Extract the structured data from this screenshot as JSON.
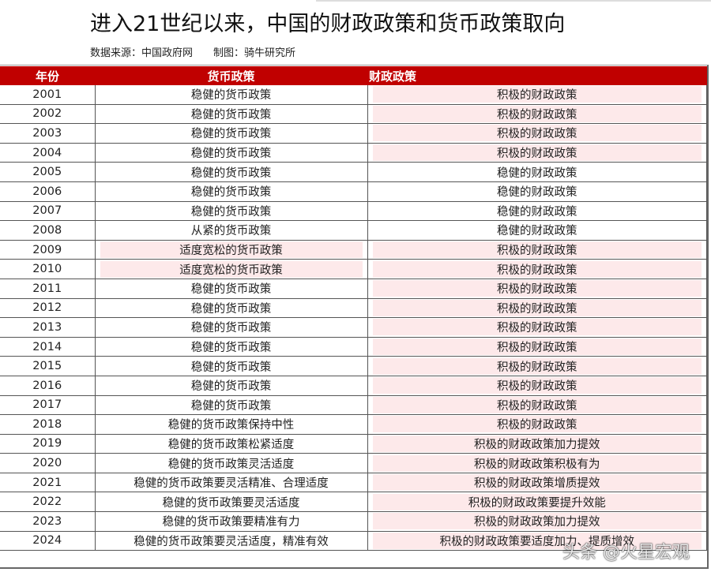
{
  "title": "进入21世纪以来，中国的财政政策和货币政策取向",
  "subtitle": "数据来源：中国政府网　　制图：骑牛研究所",
  "colors": {
    "header": "#c00000",
    "highlight": "#fde9ea"
  },
  "headers": [
    "年份",
    "货币政策",
    "财政政策"
  ],
  "rows": [
    [
      "2001",
      "稳健的货币政策",
      "积极的财政政策",
      false,
      true
    ],
    [
      "2002",
      "稳健的货币政策",
      "积极的财政政策",
      false,
      true
    ],
    [
      "2003",
      "稳健的货币政策",
      "积极的财政政策",
      false,
      true
    ],
    [
      "2004",
      "稳健的货币政策",
      "积极的财政政策",
      false,
      true
    ],
    [
      "2005",
      "稳健的货币政策",
      "稳健的财政政策",
      false,
      false
    ],
    [
      "2006",
      "稳健的货币政策",
      "稳健的财政政策",
      false,
      false
    ],
    [
      "2007",
      "稳健的货币政策",
      "稳健的财政政策",
      false,
      false
    ],
    [
      "2008",
      "从紧的货币政策",
      "稳健的财政政策",
      false,
      false
    ],
    [
      "2009",
      "适度宽松的货币政策",
      "积极的财政政策",
      true,
      true
    ],
    [
      "2010",
      "适度宽松的货币政策",
      "积极的财政政策",
      true,
      true
    ],
    [
      "2011",
      "稳健的货币政策",
      "积极的财政政策",
      false,
      true
    ],
    [
      "2012",
      "稳健的货币政策",
      "积极的财政政策",
      false,
      true
    ],
    [
      "2013",
      "稳健的货币政策",
      "积极的财政政策",
      false,
      true
    ],
    [
      "2014",
      "稳健的货币政策",
      "积极的财政政策",
      false,
      true
    ],
    [
      "2015",
      "稳健的货币政策",
      "积极的财政政策",
      false,
      true
    ],
    [
      "2016",
      "稳健的货币政策",
      "积极的财政政策",
      false,
      true
    ],
    [
      "2017",
      "稳健的货币政策",
      "积极的财政政策",
      false,
      true
    ],
    [
      "2018",
      "稳健的货币政策保持中性",
      "积极的财政政策",
      false,
      true
    ],
    [
      "2019",
      "稳健的货币政策松紧适度",
      "积极的财政政策加力提效",
      false,
      true
    ],
    [
      "2020",
      "稳健的货币政策灵活适度",
      "积极的财政政策积极有为",
      false,
      true
    ],
    [
      "2021",
      "稳健的货币政策要灵活精准、合理适度",
      "积极的财政政策增质提效",
      false,
      true
    ],
    [
      "2022",
      "稳健的货币政策要灵活适度",
      "积极的财政政策要提升效能",
      false,
      true
    ],
    [
      "2023",
      "稳健的货币政策要精准有力",
      "积极的财政政策加力提效",
      false,
      true
    ],
    [
      "2024",
      "稳健的货币政策要灵活适度，精准有效",
      "积极的财政政策要适度加力、提质增效",
      false,
      true
    ]
  ],
  "watermark": "头条 @火星宏观"
}
